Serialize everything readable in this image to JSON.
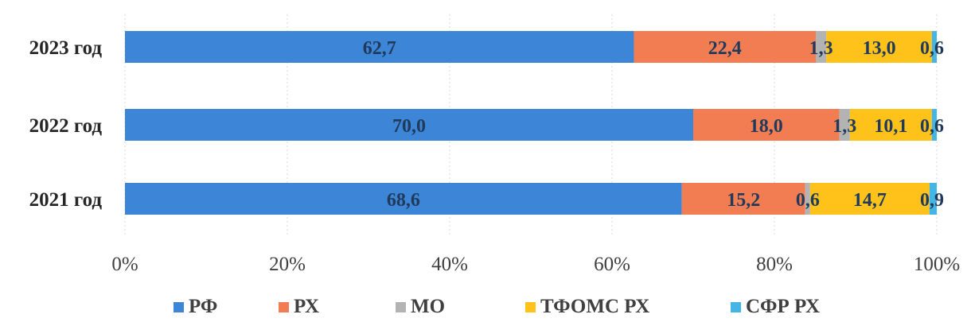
{
  "chart_data": {
    "type": "bar",
    "orientation": "horizontal",
    "stacked": "percent",
    "categories": [
      "2023 год",
      "2022 год",
      "2021 год"
    ],
    "series": [
      {
        "name": "РФ",
        "values": [
          62.7,
          70.0,
          68.6
        ],
        "labels": [
          "62,7",
          "70,0",
          "68,6"
        ],
        "color": "#3d85d6"
      },
      {
        "name": "РХ",
        "values": [
          22.4,
          18.0,
          15.2
        ],
        "labels": [
          "22,4",
          "18,0",
          "15,2"
        ],
        "color": "#f27d52"
      },
      {
        "name": "МО",
        "values": [
          1.3,
          1.3,
          0.6
        ],
        "labels": [
          "1,3",
          "1,3",
          "0,6"
        ],
        "color": "#b3b3b3"
      },
      {
        "name": "ТФОМС РХ",
        "values": [
          13.0,
          10.1,
          14.7
        ],
        "labels": [
          "13,0",
          "10,1",
          "14,7"
        ],
        "color": "#ffc21a"
      },
      {
        "name": "СФР РХ",
        "values": [
          0.6,
          0.6,
          0.9
        ],
        "labels": [
          "0,6",
          "0,6",
          "0,9"
        ],
        "color": "#45b5e6"
      }
    ],
    "xlim": [
      0,
      100
    ],
    "x_ticks": [
      0,
      20,
      40,
      60,
      80,
      100
    ],
    "x_tick_labels": [
      "0%",
      "20%",
      "40%",
      "60%",
      "80%",
      "100%"
    ],
    "grid": "vertical",
    "legend_position": "bottom"
  }
}
